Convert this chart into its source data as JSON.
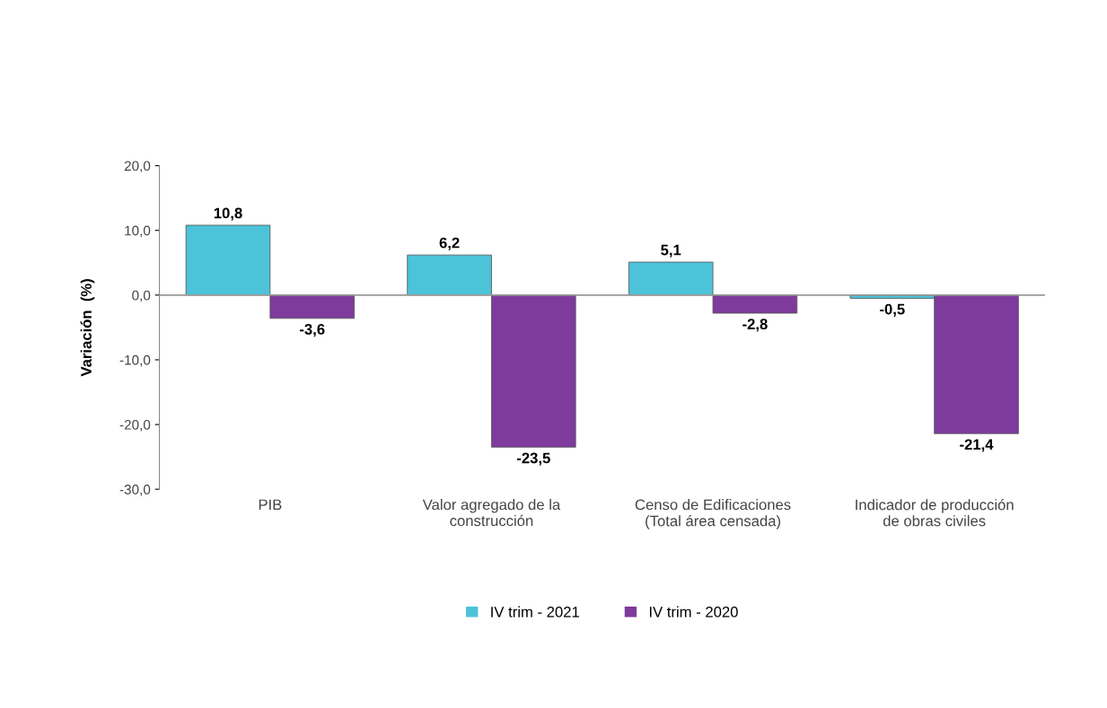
{
  "chart_data": {
    "type": "bar",
    "ylabel": "Variación  (%)",
    "categories": [
      "PIB",
      "Valor agregado de la construcción",
      "Censo de Edificaciones (Total área censada)",
      "Indicador de producción de obras civiles"
    ],
    "series": [
      {
        "name": "IV trim - 2021",
        "color": "#4cc3d9",
        "values": [
          10.8,
          6.2,
          5.1,
          -0.5
        ],
        "value_labels": [
          "10,8",
          "6,2",
          "5,1",
          "-0,5"
        ]
      },
      {
        "name": "IV trim - 2020",
        "color": "#7e3a9c",
        "values": [
          -3.6,
          -23.5,
          -2.8,
          -21.4
        ],
        "value_labels": [
          "-3,6",
          "-23,5",
          "-2,8",
          "-21,4"
        ]
      }
    ],
    "ylim": [
      -30,
      20
    ],
    "yticks": [
      {
        "value": -30,
        "label": "-30,0"
      },
      {
        "value": -20,
        "label": "-20,0"
      },
      {
        "value": -10,
        "label": "-10,0"
      },
      {
        "value": 0,
        "label": "0,0"
      },
      {
        "value": 10,
        "label": "10,0"
      },
      {
        "value": 20,
        "label": "20,0"
      }
    ],
    "ref_lines": [
      {
        "axis": "y",
        "value": 0,
        "color": "#999999"
      }
    ],
    "grid": false,
    "legend": "bottom"
  }
}
